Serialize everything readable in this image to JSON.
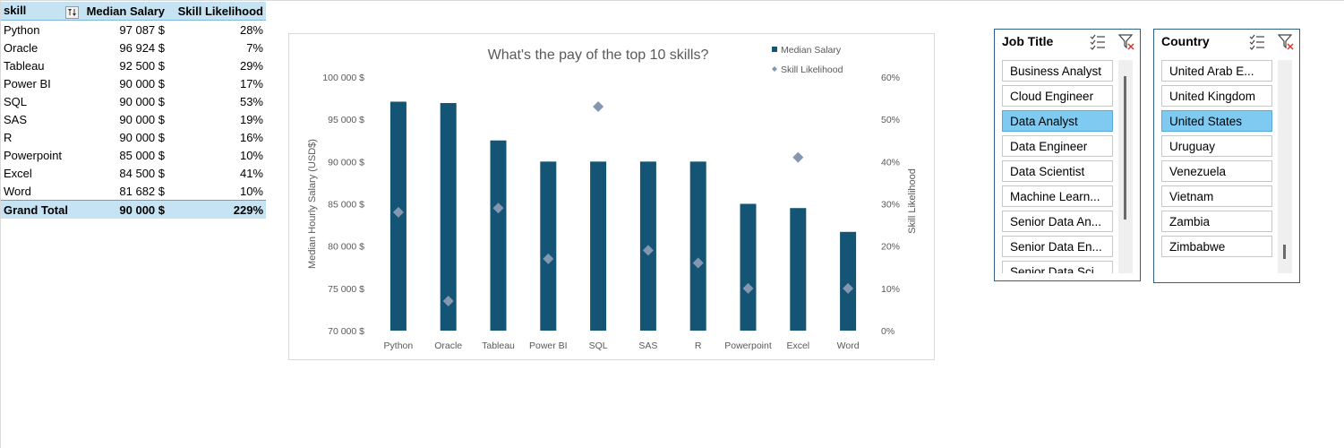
{
  "pivot": {
    "headers": {
      "skill": "skill",
      "median": "Median Salary",
      "likelihood": "Skill Likelihood"
    },
    "rows": [
      {
        "skill": "Python",
        "median": "97 087 $",
        "likelihood": "28%"
      },
      {
        "skill": "Oracle",
        "median": "96 924 $",
        "likelihood": "7%"
      },
      {
        "skill": "Tableau",
        "median": "92 500 $",
        "likelihood": "29%"
      },
      {
        "skill": "Power BI",
        "median": "90 000 $",
        "likelihood": "17%"
      },
      {
        "skill": "SQL",
        "median": "90 000 $",
        "likelihood": "53%"
      },
      {
        "skill": "SAS",
        "median": "90 000 $",
        "likelihood": "19%"
      },
      {
        "skill": "R",
        "median": "90 000 $",
        "likelihood": "16%"
      },
      {
        "skill": "Powerpoint",
        "median": "85 000 $",
        "likelihood": "10%"
      },
      {
        "skill": "Excel",
        "median": "84 500 $",
        "likelihood": "41%"
      },
      {
        "skill": "Word",
        "median": "81 682 $",
        "likelihood": "10%"
      }
    ],
    "total": {
      "skill": "Grand Total",
      "median": "90 000 $",
      "likelihood": "229%"
    },
    "header_color": "#c5e3f3"
  },
  "chart_data": {
    "type": "bar",
    "title": "What's the pay of the top 10 skills?",
    "categories": [
      "Python",
      "Oracle",
      "Tableau",
      "Power BI",
      "SQL",
      "SAS",
      "R",
      "Powerpoint",
      "Excel",
      "Word"
    ],
    "series": [
      {
        "name": "Median Salary",
        "type": "bar",
        "axis": "left",
        "color": "#145474",
        "values": [
          97087,
          96924,
          92500,
          90000,
          90000,
          90000,
          90000,
          85000,
          84500,
          81682
        ]
      },
      {
        "name": "Skill Likelihood",
        "type": "scatter",
        "marker": "diamond",
        "axis": "right",
        "color": "#8496b0",
        "values": [
          0.28,
          0.07,
          0.29,
          0.17,
          0.53,
          0.19,
          0.16,
          0.1,
          0.41,
          0.1
        ]
      }
    ],
    "ylabel": "Median Hourly Salary (USD$)",
    "y2label": "Skill Likelihood",
    "ylim": [
      70000,
      100000
    ],
    "y2lim": [
      0,
      0.6
    ],
    "y_ticks": [
      "70 000 $",
      "75 000 $",
      "80 000 $",
      "85 000 $",
      "90 000 $",
      "95 000 $",
      "100 000 $"
    ],
    "y2_ticks": [
      "0%",
      "10%",
      "20%",
      "30%",
      "40%",
      "50%",
      "60%"
    ],
    "grid": false,
    "legend": "top-right"
  },
  "slicers": {
    "job_title": {
      "title": "Job Title",
      "items": [
        "Business Analyst",
        "Cloud Engineer",
        "Data Analyst",
        "Data Engineer",
        "Data Scientist",
        "Machine Learn...",
        "Senior Data An...",
        "Senior Data En...",
        "Senior Data Sci..."
      ],
      "selected": "Data Analyst"
    },
    "country": {
      "title": "Country",
      "items": [
        "United Arab E...",
        "United Kingdom",
        "United States",
        "Uruguay",
        "Venezuela",
        "Vietnam",
        "Zambia",
        "Zimbabwe"
      ],
      "selected": "United States"
    },
    "selected_color": "#7ecaf0"
  }
}
